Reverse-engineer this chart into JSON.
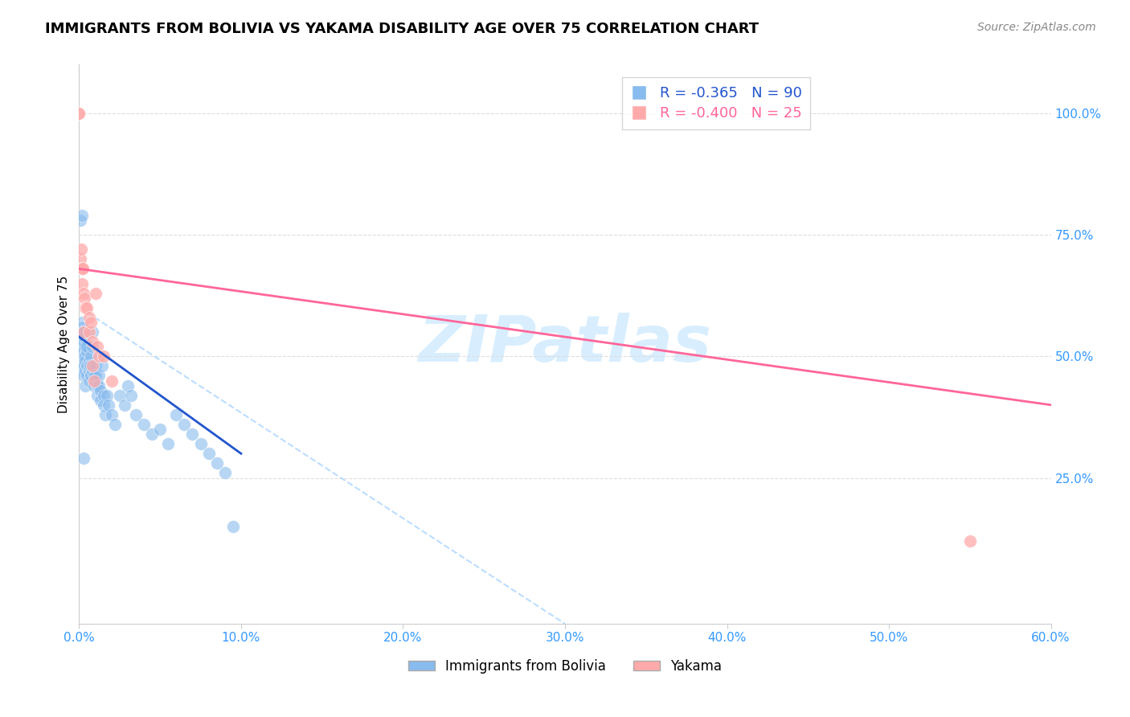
{
  "title": "IMMIGRANTS FROM BOLIVIA VS YAKAMA DISABILITY AGE OVER 75 CORRELATION CHART",
  "source": "Source: ZipAtlas.com",
  "ylabel": "Disability Age Over 75",
  "right_yticks": [
    "100.0%",
    "75.0%",
    "50.0%",
    "25.0%"
  ],
  "right_ytick_vals": [
    100.0,
    75.0,
    50.0,
    25.0
  ],
  "legend_blue": {
    "R": "-0.365",
    "N": "90",
    "label": "Immigrants from Bolivia"
  },
  "legend_pink": {
    "R": "-0.400",
    "N": "25",
    "label": "Yakama"
  },
  "blue_scatter_x": [
    0.0,
    0.1,
    0.1,
    0.1,
    0.1,
    0.1,
    0.15,
    0.15,
    0.2,
    0.2,
    0.2,
    0.2,
    0.2,
    0.2,
    0.2,
    0.2,
    0.25,
    0.25,
    0.25,
    0.3,
    0.3,
    0.3,
    0.3,
    0.3,
    0.3,
    0.35,
    0.35,
    0.35,
    0.35,
    0.4,
    0.4,
    0.4,
    0.4,
    0.4,
    0.5,
    0.5,
    0.5,
    0.5,
    0.5,
    0.6,
    0.6,
    0.6,
    0.6,
    0.6,
    0.7,
    0.7,
    0.7,
    0.7,
    0.8,
    0.8,
    0.8,
    0.9,
    0.9,
    1.0,
    1.0,
    1.0,
    1.1,
    1.1,
    1.2,
    1.2,
    1.3,
    1.3,
    1.4,
    1.5,
    1.5,
    1.6,
    1.7,
    1.8,
    2.0,
    2.2,
    2.5,
    2.8,
    3.0,
    3.2,
    3.5,
    4.0,
    4.5,
    5.0,
    5.5,
    6.0,
    6.5,
    7.0,
    7.5,
    8.0,
    8.5,
    9.0,
    0.1,
    0.2,
    0.3,
    9.5
  ],
  "blue_scatter_y": [
    50.0,
    55.0,
    52.0,
    54.0,
    48.0,
    53.0,
    51.0,
    49.0,
    57.0,
    56.0,
    52.0,
    50.0,
    48.0,
    47.0,
    53.0,
    55.0,
    51.0,
    50.0,
    52.0,
    48.0,
    47.0,
    46.0,
    51.0,
    53.0,
    49.0,
    54.0,
    50.0,
    55.0,
    48.0,
    52.0,
    44.0,
    50.0,
    49.0,
    47.0,
    48.0,
    51.0,
    46.0,
    52.0,
    48.0,
    45.0,
    47.0,
    49.0,
    47.0,
    48.0,
    46.0,
    50.0,
    48.0,
    46.0,
    52.0,
    55.0,
    47.0,
    44.0,
    46.0,
    48.0,
    45.0,
    46.0,
    44.0,
    42.0,
    46.0,
    44.0,
    43.0,
    41.0,
    48.0,
    42.0,
    40.0,
    38.0,
    42.0,
    40.0,
    38.0,
    36.0,
    42.0,
    40.0,
    44.0,
    42.0,
    38.0,
    36.0,
    34.0,
    35.0,
    32.0,
    38.0,
    36.0,
    34.0,
    32.0,
    30.0,
    28.0,
    26.0,
    78.0,
    79.0,
    29.0,
    15.0
  ],
  "pink_scatter_x": [
    0.0,
    0.0,
    0.1,
    0.15,
    0.15,
    0.2,
    0.2,
    0.25,
    0.3,
    0.3,
    0.35,
    0.4,
    0.5,
    0.6,
    0.6,
    0.7,
    0.8,
    0.8,
    0.9,
    1.0,
    1.1,
    1.2,
    1.5,
    2.0,
    55.0
  ],
  "pink_scatter_y": [
    100.0,
    100.0,
    70.0,
    68.0,
    72.0,
    65.0,
    68.0,
    68.0,
    63.0,
    55.0,
    62.0,
    60.0,
    60.0,
    55.0,
    58.0,
    57.0,
    53.0,
    48.0,
    45.0,
    63.0,
    52.0,
    50.0,
    50.0,
    45.0,
    12.0
  ],
  "blue_line_x": [
    0.0,
    10.0
  ],
  "blue_line_y": [
    54.0,
    30.0
  ],
  "pink_line_x": [
    0.0,
    60.0
  ],
  "pink_line_y": [
    68.0,
    40.0
  ],
  "dashed_line_x": [
    0.5,
    30.0
  ],
  "dashed_line_y": [
    59.0,
    -5.0
  ],
  "xlim": [
    0.0,
    60.0
  ],
  "ylim": [
    -5.0,
    110.0
  ],
  "x_ticks": [
    0.0,
    10.0,
    20.0,
    30.0,
    40.0,
    50.0,
    60.0
  ],
  "x_tick_labels": [
    "0.0%",
    "10.0%",
    "20.0%",
    "30.0%",
    "40.0%",
    "50.0%",
    "60.0%"
  ],
  "blue_color": "#88BBEE",
  "pink_color": "#FFAAAA",
  "blue_line_color": "#2255CC",
  "pink_line_color": "#FF6699",
  "dashed_color": "#BBDDFF",
  "bg_color": "#FFFFFF",
  "watermark_text": "ZIPatlas",
  "watermark_color": "#D8EEFF",
  "title_fontsize": 13,
  "source_fontsize": 10,
  "tick_fontsize": 11,
  "ylabel_fontsize": 11
}
